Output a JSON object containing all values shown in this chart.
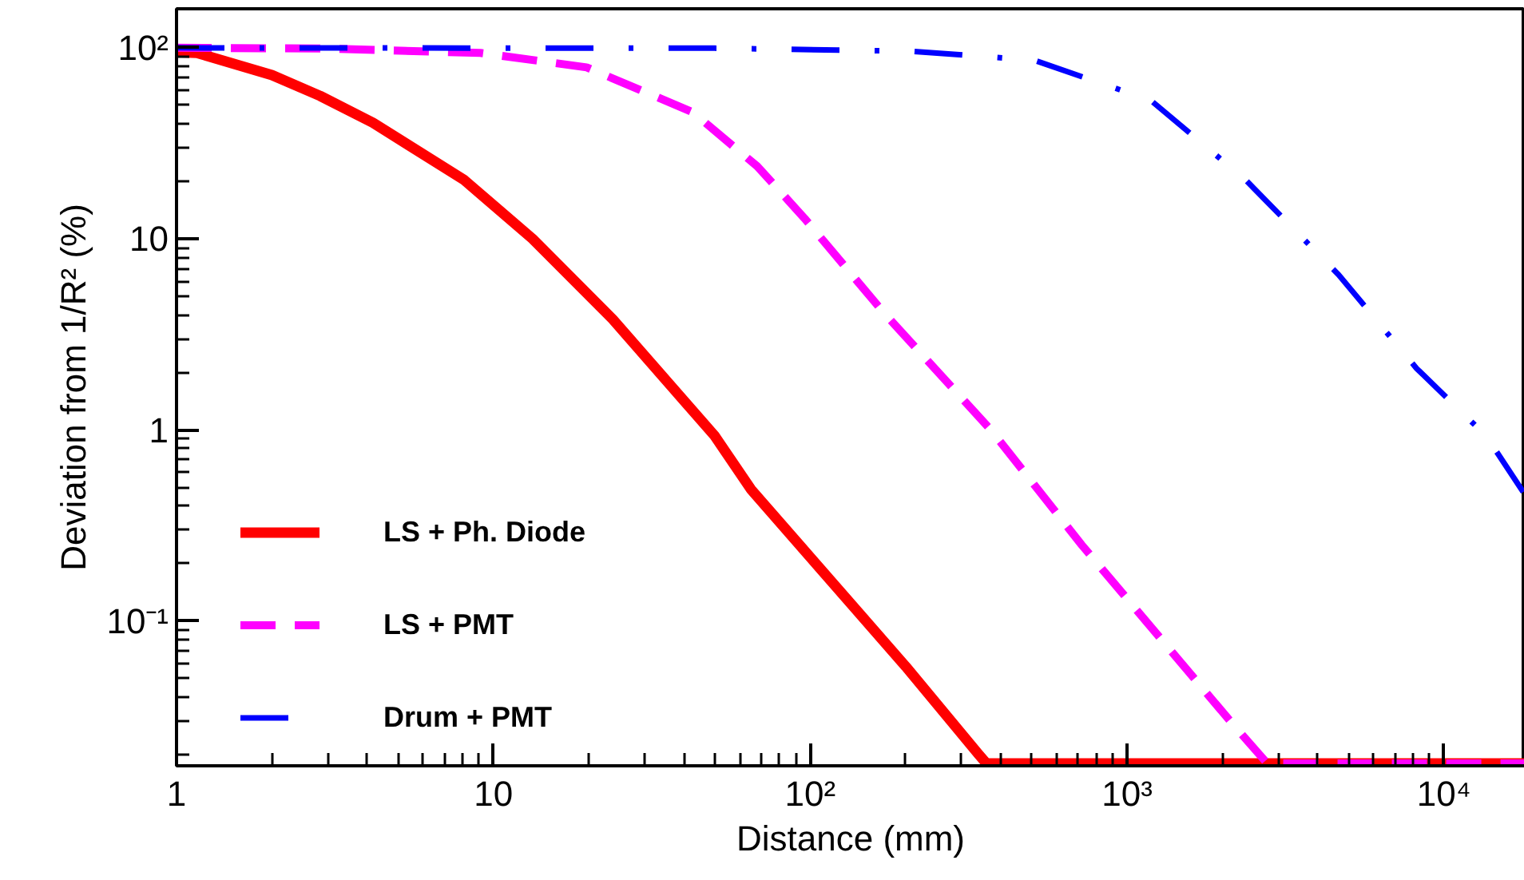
{
  "chart_data": {
    "type": "line",
    "xlabel": "Distance (mm)",
    "ylabel": "Deviation from 1/R² (%)",
    "log": "xy",
    "xlim": [
      1,
      18000
    ],
    "ylim": [
      0.0175,
      160
    ],
    "xticks": [
      1,
      10,
      {
        "value": 100,
        "label": "10²"
      },
      {
        "value": 1000,
        "label": "10³"
      },
      {
        "value": 10000,
        "label": "10⁴"
      }
    ],
    "yticks": [
      {
        "value": 0.1,
        "label": "10⁻¹"
      },
      1,
      10,
      {
        "value": 100,
        "label": "10²"
      }
    ],
    "grid": false,
    "legend": "left",
    "marker": "none",
    "series": [
      {
        "name": "LS + Ph. Diode",
        "color": "#ff0000",
        "line_style": "solid",
        "x": [
          1,
          1.16,
          2.0,
          2.84,
          4.17,
          8.1,
          13.3,
          23.8,
          50,
          65,
          200,
          340,
          360,
          1000,
          10000,
          18000
        ],
        "values": [
          95,
          94,
          72,
          56,
          40.5,
          20.3,
          10,
          3.8,
          0.93,
          0.49,
          0.058,
          0.0201,
          0.018,
          0.018,
          0.018,
          0.018
        ]
      },
      {
        "name": "LS + PMT",
        "color": "#ff00ff",
        "line_style": "dashed",
        "x": [
          1,
          3,
          9.1,
          19.7,
          42.6,
          68,
          96,
          172,
          372,
          720,
          2130,
          2770,
          5000,
          18000
        ],
        "values": [
          100,
          99,
          94,
          79,
          46,
          24,
          12.8,
          4.05,
          1.0,
          0.25,
          0.0296,
          0.018,
          0.018,
          0.018
        ]
      },
      {
        "name": "Drum + PMT",
        "color": "#0000ff",
        "line_style": "dashdot",
        "x": [
          1,
          50,
          208,
          510,
          1190,
          2370,
          4650,
          8200,
          13600,
          18000
        ],
        "values": [
          100,
          99.5,
          96,
          86,
          53,
          20.3,
          6.5,
          2.1,
          0.93,
          0.46
        ]
      }
    ]
  }
}
